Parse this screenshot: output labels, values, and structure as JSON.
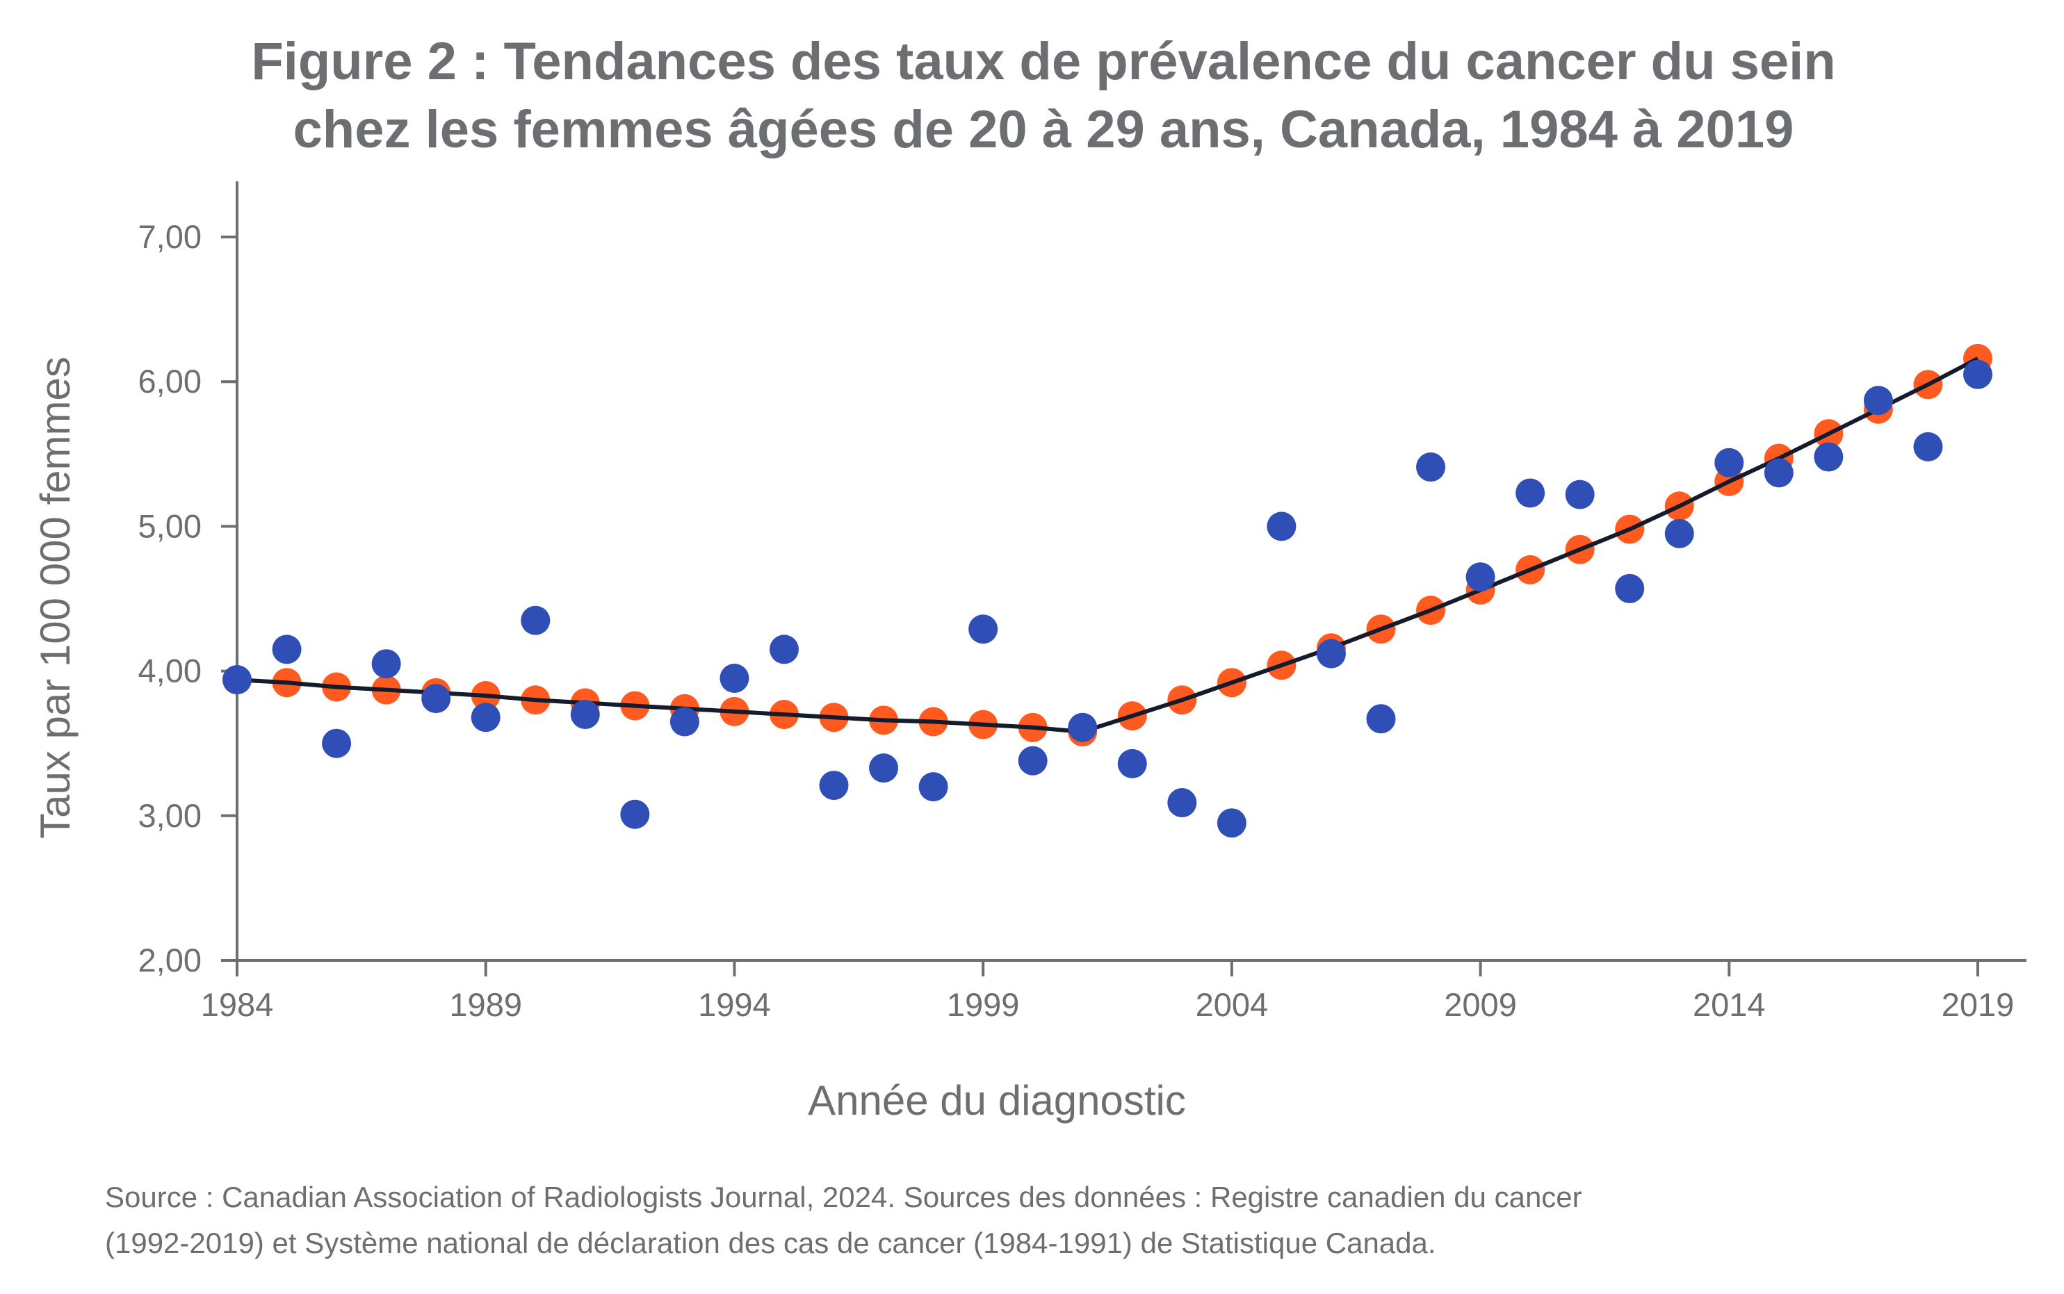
{
  "chart_data": {
    "type": "scatter",
    "title": [
      "Figure 2 : Tendances des taux de prévalence du cancer du sein",
      "chez les femmes âgées de 20 à 29 ans, Canada, 1984 à 2019"
    ],
    "xlabel": "Année du diagnostic",
    "ylabel": "Taux par 100 000 femmes",
    "xlim": [
      1984,
      2019
    ],
    "ylim": [
      2,
      7.3
    ],
    "xticks": [
      1984,
      1989,
      1994,
      1999,
      2004,
      2009,
      2014,
      2019
    ],
    "yticks": [
      "2,00",
      "3,00",
      "4,00",
      "5,00",
      "6,00",
      "7,00"
    ],
    "ytick_values": [
      2,
      3,
      4,
      5,
      6,
      7
    ],
    "grid": false,
    "x": [
      1984,
      1985,
      1986,
      1987,
      1988,
      1989,
      1990,
      1991,
      1992,
      1993,
      1994,
      1995,
      1996,
      1997,
      1998,
      1999,
      2000,
      2001,
      2002,
      2003,
      2004,
      2005,
      2006,
      2007,
      2008,
      2009,
      2010,
      2011,
      2012,
      2013,
      2014,
      2015,
      2016,
      2017,
      2018,
      2019
    ],
    "series": [
      {
        "role": "fitted",
        "color": "#ff5a1f",
        "line_color": "#141b2d",
        "values": [
          3.94,
          3.92,
          3.89,
          3.87,
          3.85,
          3.83,
          3.8,
          3.78,
          3.76,
          3.74,
          3.72,
          3.7,
          3.68,
          3.66,
          3.65,
          3.63,
          3.61,
          3.58,
          3.69,
          3.8,
          3.92,
          4.04,
          4.16,
          4.29,
          4.42,
          4.56,
          4.7,
          4.84,
          4.98,
          5.14,
          5.31,
          5.47,
          5.64,
          5.81,
          5.98,
          6.16
        ]
      },
      {
        "role": "observed",
        "color": "#2f4fb6",
        "values": [
          3.94,
          4.15,
          3.5,
          4.05,
          3.81,
          3.68,
          4.35,
          3.7,
          3.01,
          3.65,
          3.95,
          4.15,
          3.21,
          3.33,
          3.2,
          4.29,
          3.38,
          3.61,
          3.36,
          3.09,
          2.95,
          5.0,
          4.12,
          3.67,
          5.41,
          4.65,
          5.23,
          5.22,
          4.57,
          4.95,
          5.44,
          5.37,
          5.48,
          5.87,
          5.55,
          6.05
        ]
      }
    ]
  },
  "source": [
    "Source : Canadian Association of Radiologists Journal, 2024. Sources des données : Registre canadien du cancer",
    "(1992-2019) et Système national de déclaration des cas de cancer (1984-1991) de Statistique Canada."
  ]
}
